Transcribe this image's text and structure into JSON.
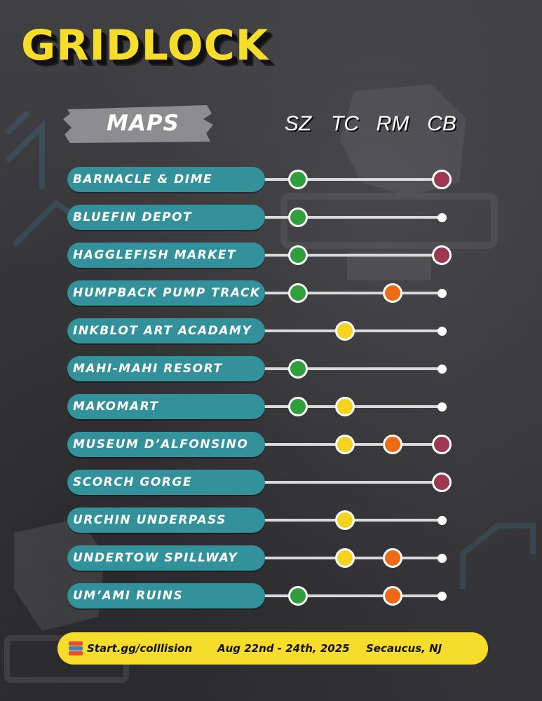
{
  "title": "GRIDLOCK",
  "maps_label": "MAPS",
  "columns": [
    "SZ",
    "TC",
    "RM",
    "CB"
  ],
  "colors": {
    "SZ": "#2e9f3a",
    "TC": "#f5d31f",
    "RM": "#ef6b13",
    "CB": "#9c3950",
    "pill": "#33919b",
    "title": "#f6dd2b",
    "footer": "#f6dd2b"
  },
  "rows": [
    {
      "map": "BARNACLE & DIME",
      "modes": [
        true,
        false,
        false,
        true
      ]
    },
    {
      "map": "BLUEFIN DEPOT",
      "modes": [
        true,
        false,
        false,
        false
      ]
    },
    {
      "map": "HAGGLEFISH MARKET",
      "modes": [
        true,
        false,
        false,
        true
      ]
    },
    {
      "map": "HUMPBACK PUMP TRACK",
      "modes": [
        true,
        false,
        true,
        false
      ]
    },
    {
      "map": "INKBLOT ART ACADAMY",
      "modes": [
        false,
        true,
        false,
        false
      ]
    },
    {
      "map": "MAHI-MAHI RESORT",
      "modes": [
        true,
        false,
        false,
        false
      ]
    },
    {
      "map": "MAKOMART",
      "modes": [
        true,
        true,
        false,
        false
      ]
    },
    {
      "map": "MUSEUM D’ALFONSINO",
      "modes": [
        false,
        true,
        true,
        true
      ]
    },
    {
      "map": "SCORCH GORGE",
      "modes": [
        false,
        false,
        false,
        true
      ]
    },
    {
      "map": "URCHIN UNDERPASS",
      "modes": [
        false,
        true,
        false,
        false
      ]
    },
    {
      "map": "UNDERTOW SPILLWAY",
      "modes": [
        false,
        true,
        true,
        false
      ]
    },
    {
      "map": "UM’AMI RUINS",
      "modes": [
        true,
        false,
        true,
        false
      ]
    }
  ],
  "footer": {
    "link": "Start.gg/colllision",
    "dates": "Aug 22nd - 24th, 2025",
    "location": "Secaucus, NJ",
    "logo_icon": "startgg-logo-icon"
  }
}
